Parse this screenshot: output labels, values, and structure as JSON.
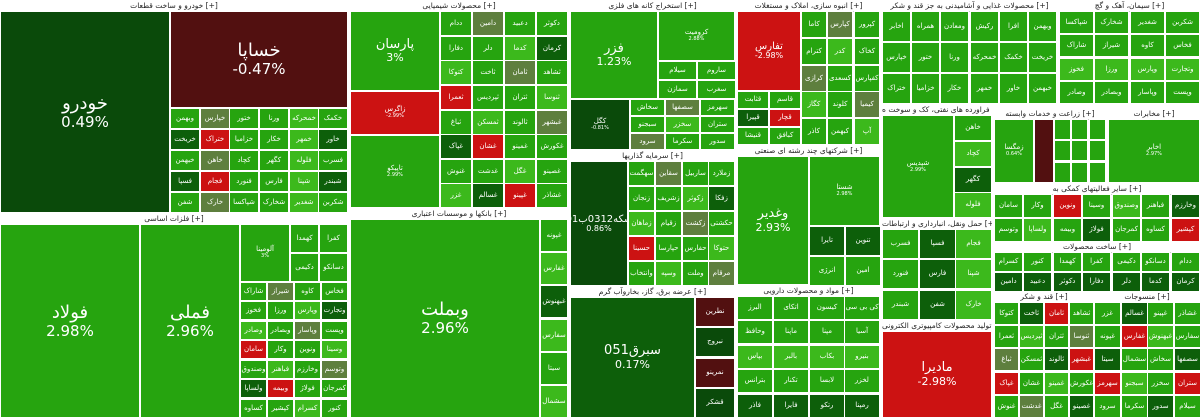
{
  "sections": {
    "auto": "خودرو و ساخت قطعات [+]",
    "chem": "محصولات شیمیایی [+]",
    "mine": "استخراج کانه های فلزی [+]",
    "build": "انبوه سازی، املاک و مستغلات [+]",
    "food": "محصولات غذایی و آشامیدنی به جز قند و شکر [+]",
    "cement": "سیمان، آهک و گچ [+]",
    "base": "فلزات اساسی [+]",
    "bank": "بانکها و موسسات اعتباری [+]",
    "invest": "سرمایه گذاریها [+]",
    "multi": "شرکتهای چند رشته ای صنعتی [+]",
    "oil": "فراورده های نفتی، کک و سوخت ه [+]",
    "agri": "زراعت و خدمات وابسته [+]",
    "telecom": "مخابرات [+]",
    "finance": "سایر فعالیتهای کمکی به [+]",
    "ceramic": "ساخت محصولات [+]",
    "transport": "حمل ونقل، انبارداری و ارتباطات [+]",
    "electric": "عرضه برق، گاز، بخاروآب گرم [+]",
    "pharma": "مواد و محصولات دارویی [+]",
    "computer": "تولید محصولات کامپیوتری الکترونی [+]",
    "sugar": "قند و شکر [+]",
    "textile": "منسوجات [+]"
  },
  "tiles": {
    "khodro": {
      "n": "خودرو",
      "p": "0.49%"
    },
    "khsapa": {
      "n": "خساپا",
      "p": "-0.47%"
    },
    "foolad": {
      "n": "فولاد",
      "p": "2.98%"
    },
    "fameli": {
      "n": "فملی",
      "p": "2.96%"
    },
    "parsan": {
      "n": "پارسان",
      "p": "3%"
    },
    "vabmellat": {
      "n": "وبملت",
      "p": "2.96%"
    },
    "fazar": {
      "n": "فزر",
      "p": "1.23%"
    },
    "sabarg": {
      "n": "سبرق051",
      "p": "0.17%"
    },
    "sekke": {
      "n": "سکه0312ب01",
      "p": "0.86%"
    },
    "vaghadir": {
      "n": "وغدیر",
      "p": "2.93%"
    },
    "madira": {
      "n": "مادیرا",
      "p": "-2.98%"
    },
    "tafars": {
      "n": "تفارس",
      "p": "-2.98%"
    },
    "zagros": {
      "n": "زاگرس",
      "p": "-2.99%"
    },
    "tapiko": {
      "n": "تاپیکو",
      "p": "2.99%"
    },
    "shasta": {
      "n": "شستا",
      "p": "2.98%"
    },
    "shepdar": {
      "n": "شپدیس",
      "p": "2.99%"
    },
    "akhaber": {
      "n": "اخابر",
      "p": "2.97%"
    },
    "kogol": {
      "n": "کگل",
      "p": "-0.81%"
    },
    "almina": {
      "n": "آلومینا",
      "p": "3%"
    },
    "kroumit": {
      "n": "کرومیت",
      "p": "2.88%"
    },
    "zamgan": {
      "n": "زمگسا",
      "p": "0.64%"
    },
    "ghaneter": {
      "n": "غاشهد",
      "p": "-2.99%"
    }
  },
  "small": [
    "وبهمن",
    "خپارس",
    "ختور",
    "ورنا",
    "خمحرکه",
    "خکمک",
    "خریخت",
    "ختراک",
    "خزامیا",
    "خکار",
    "خمهر",
    "خاور",
    "خبهمن",
    "خاهن",
    "کچاد",
    "کگهر",
    "فلوله",
    "فسرب",
    "فسپا",
    "فجام",
    "فنورد",
    "فارس",
    "شپنا",
    "شبندر",
    "شفن",
    "خارک",
    "شپاکسا",
    "شخارک",
    "شغدیر",
    "شکربن",
    "شاراک",
    "شیراز",
    "کاوه",
    "فخاس",
    "فخوز",
    "ورزا",
    "وپارس",
    "وتجارت",
    "وصادر",
    "وبصادر",
    "وپاسار",
    "وپست",
    "سامان",
    "وکار",
    "ونوین",
    "وسینا",
    "وصندوق",
    "فباهنر",
    "وخارزم",
    "وتوسم",
    "ولساپا",
    "وبیمه",
    "فولاژ",
    "کمرجان",
    "کساوه",
    "کپشیر",
    "کسرام",
    "کنور",
    "کهمدا",
    "کفرا",
    "دکیمی",
    "دسانکو",
    "ددام",
    "دامین",
    "دعبید",
    "دکوثر",
    "دفارا",
    "دلر",
    "کدما",
    "کرمان",
    "کتوکا",
    "ثاخت",
    "ثامان",
    "ثشاهد",
    "ثعمرا",
    "ثپردیس",
    "ثتران",
    "ثنوسا",
    "ثباغ",
    "ثمسکن",
    "ثالوند",
    "غبشهر",
    "غپاک",
    "غشان",
    "غمینو",
    "غکورش",
    "غنوش",
    "غدشت",
    "غگل",
    "غصینو",
    "غزر",
    "غسالم",
    "غپینو",
    "غشاذر",
    "غپونه",
    "غفارس",
    "غبهنوش",
    "سفارس",
    "سیتا",
    "سشمال",
    "سخاش",
    "سصفها",
    "سهرمز",
    "سبجنو",
    "سخزر",
    "ستران",
    "سرود",
    "سکرما",
    "سدور",
    "سیلام",
    "ساروم",
    "سمازن",
    "سغرب",
    "سهگمت",
    "سقاین",
    "ساربیل",
    "زملارد",
    "زنجان",
    "زشریف",
    "زکوثر",
    "زفکا",
    "زماهان",
    "زقیام",
    "زکشت",
    "حکشتی",
    "حسینا",
    "حپارسا",
    "حفارس",
    "حتوکا",
    "وانتخاب",
    "وسپه",
    "وملت",
    "مرقام",
    "نطرین",
    "نبروج",
    "نمرینو",
    "قشکر",
    "قثابت",
    "قاسم",
    "قپیرا",
    "قچار",
    "قنیشا",
    "کبافق",
    "کاما",
    "کپارس",
    "کپرور",
    "کترام",
    "کدر",
    "کخاک",
    "کرازی",
    "کسعدی",
    "کفپارس",
    "کگاز",
    "کلوند",
    "کیمیا",
    "کاذر",
    "کبهمن",
    "آپ",
    "تایرا",
    "تنوین",
    "انرژی",
    "امین",
    "البرز",
    "اتکای",
    "کیسون",
    "کی بی سی",
    "وحافظ",
    "ماپنا",
    "مپنا",
    "آسیا",
    "بپاس",
    "بالبر",
    "بکاب",
    "بنیرو",
    "بترانس",
    "تکنار",
    "لابسا",
    "لخزر",
    "فاذر",
    "فایرا",
    "رتکو",
    "رمپنا",
    "اخابر",
    "همراه",
    "ومعادن",
    "رکیش",
    "افرا"
  ],
  "colors": {
    "green": "#26a40f",
    "lightgreen": "#3cb91c",
    "darkgreen": "#0d5f0a",
    "red": "#cc1212",
    "darkred": "#521010"
  }
}
